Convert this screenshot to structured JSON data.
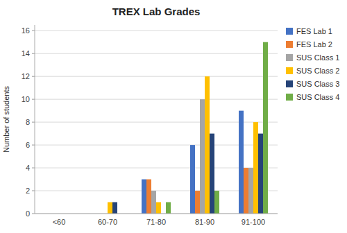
{
  "chart_data": {
    "type": "bar",
    "title": "TREX Lab Grades",
    "ylabel": "Number of students",
    "categories": [
      "<60",
      "60-70",
      "71-80",
      "81-90",
      "91-100"
    ],
    "series": [
      {
        "name": "FES Lab 1",
        "color": "#4472C4",
        "values": [
          0,
          0,
          3,
          6,
          9
        ]
      },
      {
        "name": "FES Lab 2",
        "color": "#ED7D31",
        "values": [
          0,
          0,
          3,
          2,
          4
        ]
      },
      {
        "name": "SUS Class 1",
        "color": "#A5A5A5",
        "values": [
          0,
          0,
          2,
          10,
          4
        ]
      },
      {
        "name": "SUS Class 2",
        "color": "#FFC000",
        "values": [
          0,
          1,
          1,
          12,
          8
        ]
      },
      {
        "name": "SUS Class 3",
        "color": "#264478",
        "values": [
          0,
          1,
          0,
          7,
          7
        ]
      },
      {
        "name": "SUS Class 4",
        "color": "#70AD47",
        "values": [
          0,
          0,
          1,
          2,
          15
        ]
      }
    ],
    "ylim": [
      0,
      16.5
    ],
    "yticks": [
      0,
      2,
      4,
      6,
      8,
      10,
      12,
      14,
      16
    ],
    "grid": true,
    "legend": "right"
  }
}
